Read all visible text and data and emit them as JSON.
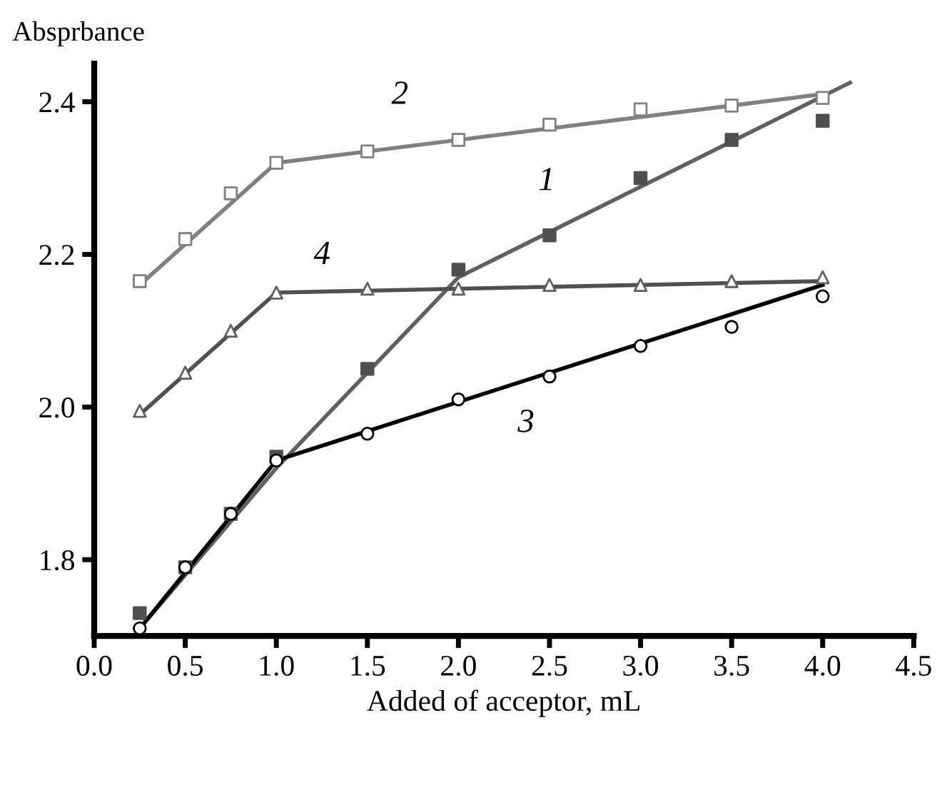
{
  "chart_data": {
    "type": "scatter",
    "xlabel": "Added of acceptor, mL",
    "ylabel": "Absprbance",
    "xlim": [
      0.0,
      4.5
    ],
    "xticks": [
      {
        "value": 0,
        "label": "0.0"
      },
      0.5,
      {
        "value": 1,
        "label": "1.0"
      },
      1.5,
      {
        "value": 2,
        "label": "2.0"
      },
      2.5,
      {
        "value": 3,
        "label": "3.0"
      },
      3.5,
      {
        "value": 4,
        "label": "4.0"
      },
      4.5
    ],
    "ylim": [
      1.7,
      2.45
    ],
    "yticks": [
      1.8,
      {
        "value": 2,
        "label": "2.0"
      },
      2.2,
      2.4
    ],
    "grid": false,
    "legend": false,
    "series": [
      {
        "marker": "square",
        "color": "#808080",
        "x": [
          0.25,
          0.5,
          0.75,
          1.0,
          1.5,
          2.0,
          2.5,
          3.0,
          3.5,
          4.0
        ],
        "values": [
          2.165,
          2.22,
          2.28,
          2.32,
          2.335,
          2.35,
          2.37,
          2.39,
          2.395,
          2.405
        ]
      },
      {
        "type": "line",
        "name": "2",
        "marker": "none",
        "line_style": "solid",
        "color": "#808080",
        "x": [
          0.25,
          1.0,
          4.0
        ],
        "values": [
          2.16,
          2.32,
          2.41
        ]
      },
      {
        "marker": "square",
        "color": "#505050",
        "x": [
          0.25,
          0.5,
          0.75,
          1.0,
          1.5,
          2.0,
          2.5,
          3.0,
          3.5,
          4.0
        ],
        "values": [
          1.73,
          1.79,
          1.86,
          1.935,
          2.05,
          2.18,
          2.225,
          2.3,
          2.35,
          2.375
        ]
      },
      {
        "type": "line",
        "name": "1",
        "marker": "none",
        "line_style": "solid",
        "color": "#606060",
        "x": [
          0.25,
          1.0,
          2.0,
          4.15
        ],
        "values": [
          1.71,
          1.92,
          2.17,
          2.425
        ]
      },
      {
        "marker": "triangle",
        "color": "#606060",
        "x": [
          0.25,
          0.5,
          0.75,
          1.0,
          1.5,
          2.0,
          2.5,
          3.0,
          3.5,
          4.0
        ],
        "values": [
          1.995,
          2.045,
          2.1,
          2.15,
          2.155,
          2.155,
          2.16,
          2.16,
          2.165,
          2.17
        ]
      },
      {
        "type": "line",
        "name": "4",
        "marker": "none",
        "line_style": "solid",
        "color": "#505050",
        "x": [
          0.25,
          1.0,
          4.0
        ],
        "values": [
          1.99,
          2.15,
          2.165
        ]
      },
      {
        "marker": "circle",
        "color": "#000000",
        "x": [
          0.25,
          0.5,
          0.75,
          1.0,
          1.5,
          2.0,
          2.5,
          3.0,
          3.5,
          4.0
        ],
        "values": [
          1.71,
          1.79,
          1.86,
          1.93,
          1.965,
          2.01,
          2.04,
          2.08,
          2.105,
          2.145
        ]
      },
      {
        "type": "line",
        "name": "3",
        "marker": "none",
        "line_style": "solid",
        "color": "#000000",
        "x": [
          0.25,
          1.0,
          4.0
        ],
        "values": [
          1.71,
          1.93,
          2.16
        ]
      }
    ]
  }
}
